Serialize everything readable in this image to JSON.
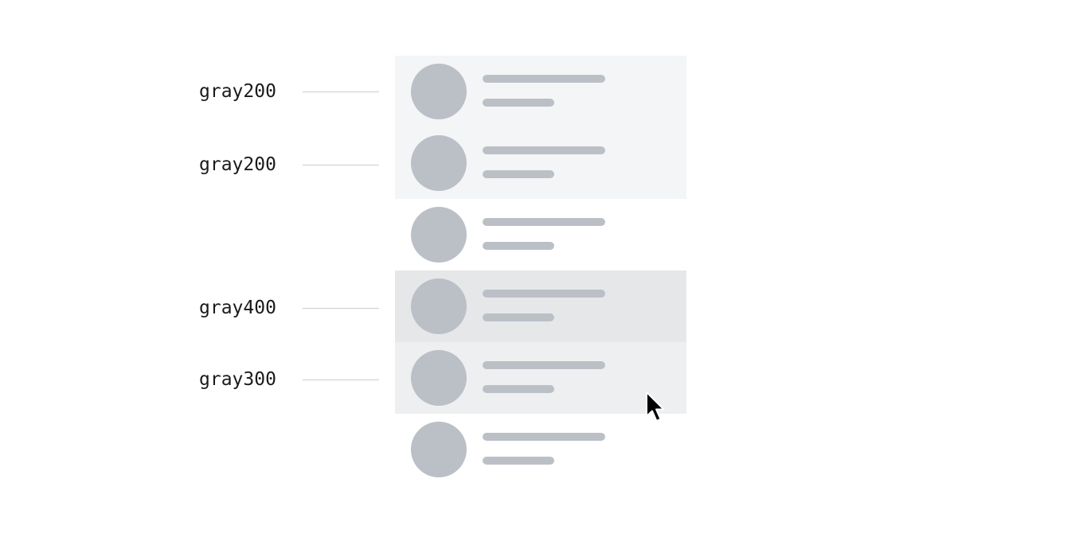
{
  "rows": [
    {
      "state": "gray200",
      "background": "#f4f5f6"
    },
    {
      "state": "gray200",
      "background": "#f4f5f6"
    },
    {
      "state": "default",
      "background": "#ffffff"
    },
    {
      "state": "gray400",
      "background": "#e6e7e9"
    },
    {
      "state": "gray300",
      "background": "#eeeff0"
    },
    {
      "state": "default",
      "background": "#ffffff"
    }
  ],
  "annotations": [
    {
      "label": "gray200",
      "row": 0
    },
    {
      "label": "gray200",
      "row": 1
    },
    {
      "label": "gray400",
      "row": 3
    },
    {
      "label": "gray300",
      "row": 4
    }
  ],
  "colors": {
    "placeholder": "#bbc0c7",
    "leader_line": "#c9ccd0",
    "label_text": "#1a1a1a"
  },
  "cursor": {
    "icon": "mouse-pointer-icon",
    "over_row": 4
  }
}
